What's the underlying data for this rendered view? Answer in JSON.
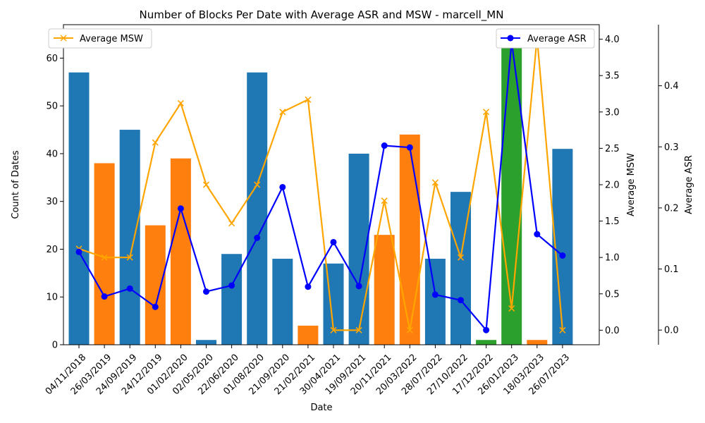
{
  "chart_data": {
    "type": "bar+line",
    "title": "Number of Blocks Per Date with Average ASR and MSW - marcell_MN",
    "xlabel": "Date",
    "ylabel_left": "Count of Dates",
    "ylabel_right1": "Average MSW",
    "ylabel_right2": "Average ASR",
    "categories": [
      "04/11/2018",
      "26/03/2019",
      "24/09/2019",
      "24/12/2019",
      "01/02/2020",
      "02/05/2020",
      "22/06/2020",
      "01/08/2020",
      "21/09/2020",
      "21/02/2021",
      "30/04/2021",
      "19/09/2021",
      "20/11/2021",
      "20/03/2022",
      "28/07/2022",
      "27/10/2022",
      "17/12/2022",
      "26/01/2023",
      "18/03/2023",
      "26/07/2023"
    ],
    "bars": {
      "values": [
        57,
        38,
        45,
        25,
        39,
        1,
        19,
        57,
        18,
        4,
        17,
        40,
        23,
        44,
        18,
        32,
        1,
        64,
        1,
        41
      ],
      "color_keys": [
        "a",
        "b",
        "a",
        "b",
        "b",
        "a",
        "a",
        "a",
        "a",
        "b",
        "a",
        "a",
        "b",
        "b",
        "a",
        "a",
        "c",
        "c",
        "b",
        "a"
      ],
      "colors": {
        "a": "#1f77b4",
        "b": "#ff7f0e",
        "c": "#2ca02c"
      },
      "ylim": [
        0,
        67
      ],
      "yticks": [
        0,
        10,
        20,
        30,
        40,
        50,
        60
      ]
    },
    "msw": {
      "name": "Average MSW",
      "color": "#ffa500",
      "marker": "x",
      "values": [
        1.12,
        1.0,
        1.0,
        2.58,
        3.12,
        2.0,
        1.47,
        2.0,
        3.0,
        3.17,
        0.0,
        0.0,
        1.78,
        0.0,
        2.03,
        1.0,
        3.0,
        0.3,
        4.02,
        0.0
      ],
      "ylim": [
        -0.2,
        4.2
      ],
      "yticks": [
        0.0,
        0.5,
        1.0,
        1.5,
        2.0,
        2.5,
        3.0,
        3.5,
        4.0
      ],
      "legend_position": "upper-left"
    },
    "asr": {
      "name": "Average ASR",
      "color": "#0000ff",
      "marker": "o",
      "values": [
        0.128,
        0.055,
        0.068,
        0.038,
        0.199,
        0.063,
        0.073,
        0.151,
        0.234,
        0.071,
        0.144,
        0.072,
        0.302,
        0.299,
        0.058,
        0.049,
        0.0,
        0.472,
        0.157,
        0.122
      ],
      "ylim": [
        -0.024,
        0.5
      ],
      "yticks": [
        0.0,
        0.1,
        0.2,
        0.3,
        0.4
      ],
      "legend_position": "upper-right"
    }
  }
}
